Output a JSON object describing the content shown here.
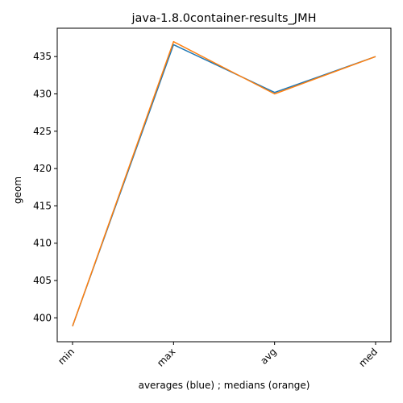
{
  "chart_data": {
    "type": "line",
    "title": "java-1.8.0container-results_JMH",
    "xlabel": "averages (blue) ; medians (orange)",
    "ylabel": "geom",
    "categories": [
      "min",
      "max",
      "avg",
      "med"
    ],
    "ylim": [
      396.8,
      438.8
    ],
    "yticks": [
      400,
      405,
      410,
      415,
      420,
      425,
      430,
      435
    ],
    "grid": false,
    "series": [
      {
        "values": [
          398.9,
          436.6,
          430.2,
          435.0
        ],
        "color": "#1f77b4"
      },
      {
        "values": [
          398.9,
          437.0,
          430.0,
          435.0
        ],
        "color": "#ff7f0e"
      }
    ]
  }
}
